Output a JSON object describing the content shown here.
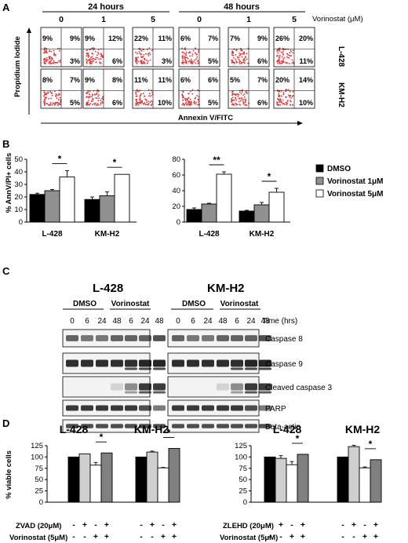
{
  "panel_letters": [
    "A",
    "B",
    "C",
    "D"
  ],
  "panelA": {
    "group_labels": [
      "24 hours",
      "48 hours"
    ],
    "doses": [
      "0",
      "1",
      "5",
      "0",
      "1",
      "5"
    ],
    "dose_unit": "Vorinostat (μM)",
    "row_labels": [
      "L-428",
      "KM-H2"
    ],
    "y_axis": "Propidium Iodide",
    "x_axis": "Annexin V/FITC",
    "quadrants": [
      [
        [
          "9%",
          "9%",
          "3%"
        ],
        [
          "9%",
          "12%",
          "6%"
        ],
        [
          "22%",
          "11%",
          "3%"
        ],
        [
          "6%",
          "7%",
          "5%"
        ],
        [
          "7%",
          "9%",
          "6%"
        ],
        [
          "26%",
          "20%",
          "11%"
        ]
      ],
      [
        [
          "8%",
          "7%",
          "5%"
        ],
        [
          "9%",
          "8%",
          "6%"
        ],
        [
          "11%",
          "11%",
          "10%"
        ],
        [
          "6%",
          "6%",
          "5%"
        ],
        [
          "5%",
          "7%",
          "6%"
        ],
        [
          "20%",
          "14%",
          "10%"
        ]
      ]
    ]
  },
  "panelC": {
    "cell_lines": [
      "L-428",
      "KM-H2"
    ],
    "treatments": [
      "DMSO",
      "Vorinostat"
    ],
    "timepoints": [
      "0",
      "6",
      "24",
      "48",
      "6",
      "24",
      "48"
    ],
    "time_label": "Time (hrs)",
    "blots": [
      "Caspase 8",
      "Caspase 9",
      "Cleaved caspase 3",
      "PARP",
      "Beta-actin"
    ]
  },
  "chart_data": [
    {
      "type": "bar",
      "title": "24 hours",
      "ylabel": "% AnnV/PI+ cells",
      "ylim": [
        0,
        50
      ],
      "yticks": [
        "0",
        "10",
        "20",
        "30",
        "40",
        "50"
      ],
      "categories": [
        "L-428",
        "KM-H2"
      ],
      "series": [
        {
          "name": "DMSO",
          "color": "#000000",
          "values": [
            22,
            18
          ],
          "errors": [
            1,
            2
          ]
        },
        {
          "name": "Vorinostat 1μM",
          "color": "#909090",
          "values": [
            25,
            21
          ],
          "errors": [
            1,
            3
          ]
        },
        {
          "name": "Vorinostat 5μM",
          "color": "#ffffff",
          "values": [
            36,
            38
          ],
          "errors": [
            5,
            0
          ]
        }
      ],
      "annotations": [
        "*",
        "*"
      ]
    },
    {
      "type": "bar",
      "title": "48 hours",
      "ylim": [
        0,
        80
      ],
      "yticks": [
        "0",
        "20",
        "40",
        "60",
        "80"
      ],
      "categories": [
        "L-428",
        "KM-H2"
      ],
      "series": [
        {
          "name": "DMSO",
          "color": "#000000",
          "values": [
            16,
            14
          ],
          "errors": [
            2,
            1
          ]
        },
        {
          "name": "Vorinostat 1μM",
          "color": "#909090",
          "values": [
            23,
            22
          ],
          "errors": [
            1,
            3
          ]
        },
        {
          "name": "Vorinostat 5μM",
          "color": "#ffffff",
          "values": [
            61,
            38
          ],
          "errors": [
            3,
            5
          ]
        }
      ],
      "annotations": [
        "**",
        "*"
      ]
    },
    {
      "type": "bar",
      "title": "ZVAD",
      "ylabel": "% viable cells",
      "ylim": [
        0,
        125
      ],
      "yticks": [
        "0",
        "25",
        "50",
        "75",
        "100",
        "125"
      ],
      "categories": [
        "L-428",
        "KM-H2"
      ],
      "series": [
        {
          "name": "control",
          "color": "#000000",
          "values": [
            100,
            100
          ],
          "errors": [
            0,
            0
          ]
        },
        {
          "name": "ZVAD",
          "color": "#cfcfcf",
          "values": [
            107,
            111
          ],
          "errors": [
            0,
            2
          ]
        },
        {
          "name": "Vorinostat",
          "color": "#ffffff",
          "values": [
            82,
            76
          ],
          "errors": [
            6,
            1
          ]
        },
        {
          "name": "ZVAD + Vorinostat",
          "color": "#808080",
          "values": [
            109,
            119
          ],
          "errors": [
            0,
            0
          ]
        }
      ],
      "inhibitor_label": "ZVAD (20μM)",
      "drug_label": "Vorinostat (5μM)",
      "annotations": [
        "*",
        "*"
      ]
    },
    {
      "type": "bar",
      "ylim": [
        0,
        125
      ],
      "yticks": [
        "0",
        "25",
        "50",
        "75",
        "100",
        "125"
      ],
      "categories": [
        "L-428",
        "KM-H2"
      ],
      "series": [
        {
          "name": "control",
          "color": "#000000",
          "values": [
            100,
            100
          ],
          "errors": [
            0,
            0
          ]
        },
        {
          "name": "ZLEHD",
          "color": "#cfcfcf",
          "values": [
            97,
            123
          ],
          "errors": [
            6,
            3
          ]
        },
        {
          "name": "Vorinostat",
          "color": "#ffffff",
          "values": [
            83,
            76
          ],
          "errors": [
            7,
            2
          ]
        },
        {
          "name": "ZLEHD + Vorinostat",
          "color": "#808080",
          "values": [
            106,
            94
          ],
          "errors": [
            0,
            0
          ]
        }
      ],
      "inhibitor_label": "ZLEHD (20μM)",
      "drug_label": "Vorinostat (5μM)",
      "annotations": [
        "*",
        "*"
      ]
    }
  ],
  "legend": [
    {
      "label": "DMSO",
      "color": "#000000"
    },
    {
      "label": "Vorinostat 1μM",
      "color": "#909090"
    },
    {
      "label": "Vorinostat 5μM",
      "color": "#ffffff"
    }
  ],
  "signs": {
    "inhibitor": [
      "-",
      "+",
      "-",
      "+"
    ],
    "drug": [
      "-",
      "-",
      "+",
      "+"
    ]
  }
}
